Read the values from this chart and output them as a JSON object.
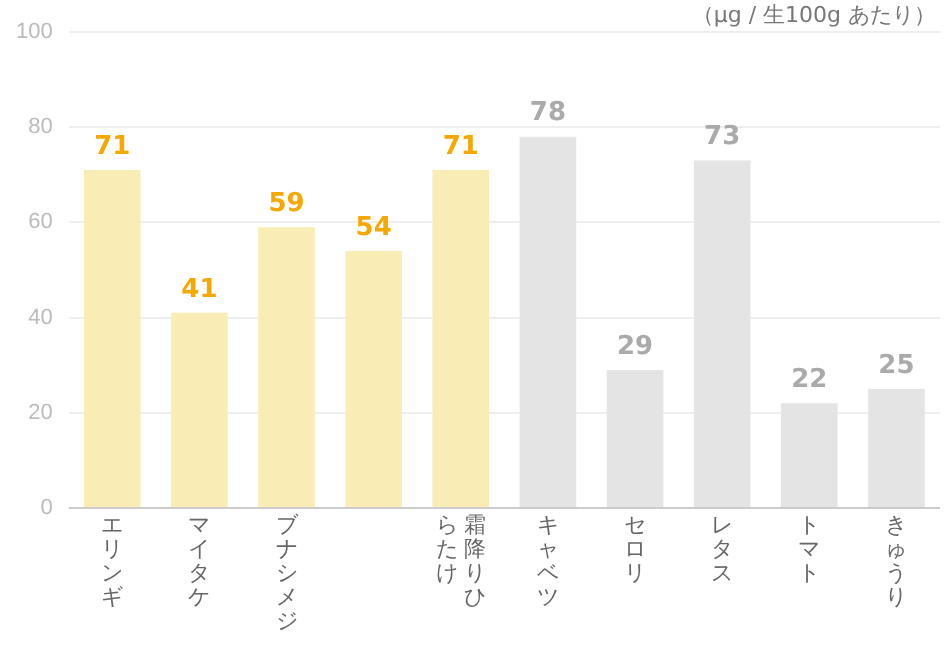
{
  "chart_data": {
    "type": "bar",
    "categories": [
      "エリンギ",
      "マイタケ",
      "ブナシメジ",
      null,
      "霜降りひらたけ",
      "キャベツ",
      "セロリ",
      "レタス",
      "トマト",
      "きゅうり"
    ],
    "values": [
      71,
      41,
      59,
      54,
      71,
      78,
      29,
      73,
      22,
      25
    ],
    "colors": [
      "#f9edb5",
      "#f9edb5",
      "#f9edb5",
      "#f9edb5",
      "#f9edb5",
      "#e4e4e4",
      "#e4e4e4",
      "#e4e4e4",
      "#e4e4e4",
      "#e4e4e4"
    ],
    "ylim": [
      0,
      100
    ],
    "yticks": [
      0,
      20,
      40,
      60,
      80,
      100
    ],
    "grid": "y",
    "data_labels": true,
    "legend": false,
    "annotations": [
      "（μg / 生100g あたり）"
    ]
  }
}
